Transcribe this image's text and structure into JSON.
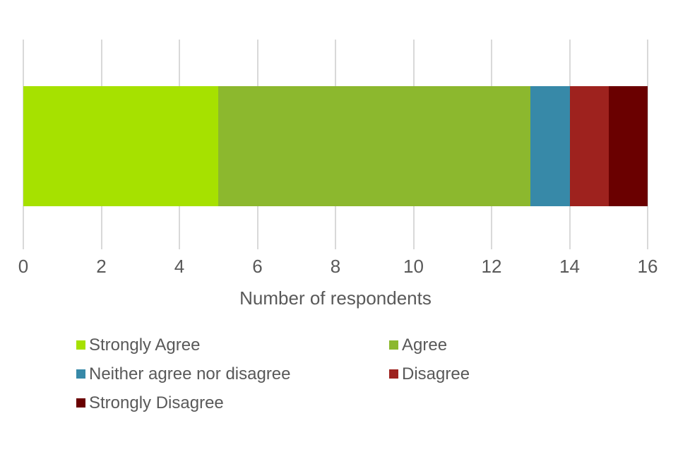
{
  "chart_data": {
    "type": "bar",
    "orientation": "horizontal",
    "stacked": true,
    "title": "",
    "xlabel": "Number of respondents",
    "ylabel": "",
    "xlim": [
      0,
      16
    ],
    "xticks": [
      0,
      2,
      4,
      6,
      8,
      10,
      12,
      14,
      16
    ],
    "grid": true,
    "legend_position": "bottom",
    "legend_columns": 2,
    "series": [
      {
        "name": "Strongly Agree",
        "value": 5,
        "color": "#A6E100"
      },
      {
        "name": "Agree",
        "value": 8,
        "color": "#8CB82E"
      },
      {
        "name": "Neither agree nor disagree",
        "value": 1,
        "color": "#3789A8"
      },
      {
        "name": "Disagree",
        "value": 1,
        "color": "#9E221E"
      },
      {
        "name": "Strongly Disagree",
        "value": 1,
        "color": "#6A0000"
      }
    ]
  },
  "style": {
    "text_color": "#595959",
    "gridline_color": "#D9D9D9",
    "background_color": "#FFFFFF"
  }
}
